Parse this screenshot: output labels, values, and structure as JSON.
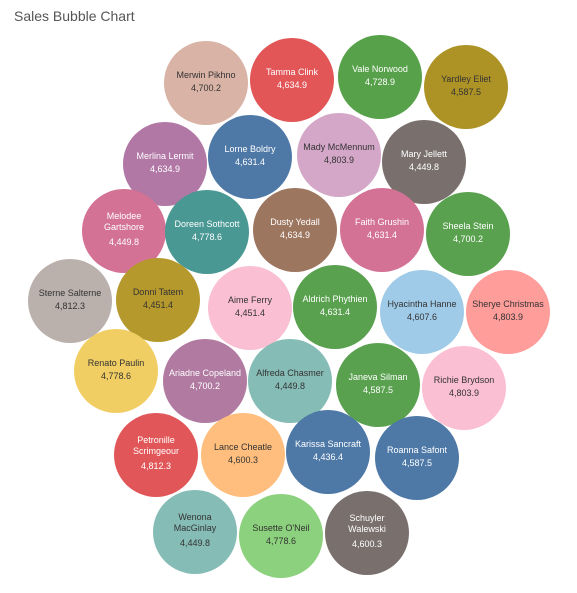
{
  "chart_data": {
    "type": "bubble",
    "title": "Sales Bubble Chart",
    "series": [
      {
        "name": "Merwin Pikhno",
        "value": "4,700.2",
        "color": "#d9b3a6"
      },
      {
        "name": "Tamma Clink",
        "value": "4,634.9",
        "color": "#e25658"
      },
      {
        "name": "Vale Norwood",
        "value": "4,728.9",
        "color": "#57a14a"
      },
      {
        "name": "Yardley Eliet",
        "value": "4,587.5",
        "color": "#ad9326"
      },
      {
        "name": "Merlina Lermit",
        "value": "4,634.9",
        "color": "#b178a6"
      },
      {
        "name": "Lorne Boldry",
        "value": "4,631.4",
        "color": "#4e79a7"
      },
      {
        "name": "Mady McMennum",
        "value": "4,803.9",
        "color": "#d4a6c8"
      },
      {
        "name": "Mary Jellett",
        "value": "4,449.8",
        "color": "#79706e"
      },
      {
        "name": "Melodee Gartshore",
        "value": "4,449.8",
        "color": "#d37295"
      },
      {
        "name": "Doreen Sothcott",
        "value": "4,778.6",
        "color": "#499894"
      },
      {
        "name": "Dusty Yedall",
        "value": "4,634.9",
        "color": "#9d7660"
      },
      {
        "name": "Faith Grushin",
        "value": "4,631.4",
        "color": "#d37295"
      },
      {
        "name": "Sheela Stein",
        "value": "4,700.2",
        "color": "#59a14f"
      },
      {
        "name": "Sterne Salterne",
        "value": "4,812.3",
        "color": "#bab0ac"
      },
      {
        "name": "Donni Tatem",
        "value": "4,451.4",
        "color": "#b6992d"
      },
      {
        "name": "Aime Ferry",
        "value": "4,451.4",
        "color": "#fabfd2"
      },
      {
        "name": "Aldrich Phythien",
        "value": "4,631.4",
        "color": "#59a14f"
      },
      {
        "name": "Hyacintha Hanne",
        "value": "4,607.6",
        "color": "#a0cbe8"
      },
      {
        "name": "Sherye Christmas",
        "value": "4,803.9",
        "color": "#ff9d9a"
      },
      {
        "name": "Renato Paulin",
        "value": "4,778.6",
        "color": "#f1ce63"
      },
      {
        "name": "Ariadne Copeland",
        "value": "4,700.2",
        "color": "#b07aa1"
      },
      {
        "name": "Alfreda Chasmer",
        "value": "4,449.8",
        "color": "#86bcb6"
      },
      {
        "name": "Janeva Silman",
        "value": "4,587.5",
        "color": "#59a14f"
      },
      {
        "name": "Richie Brydson",
        "value": "4,803.9",
        "color": "#fabfd2"
      },
      {
        "name": "Petronille Scrimgeour",
        "value": "4,812.3",
        "color": "#e15759"
      },
      {
        "name": "Lance Cheatle",
        "value": "4,600.3",
        "color": "#ffbe7d"
      },
      {
        "name": "Karissa Sancraft",
        "value": "4,436.4",
        "color": "#4e79a7"
      },
      {
        "name": "Roanna Safont",
        "value": "4,587.5",
        "color": "#4e79a7"
      },
      {
        "name": "Wenona MacGinlay",
        "value": "4,449.8",
        "color": "#86bcb6"
      },
      {
        "name": "Susette O'Neil",
        "value": "4,778.6",
        "color": "#8cd17d"
      },
      {
        "name": "Schuyler Walewski",
        "value": "4,600.3",
        "color": "#79706e"
      }
    ]
  }
}
